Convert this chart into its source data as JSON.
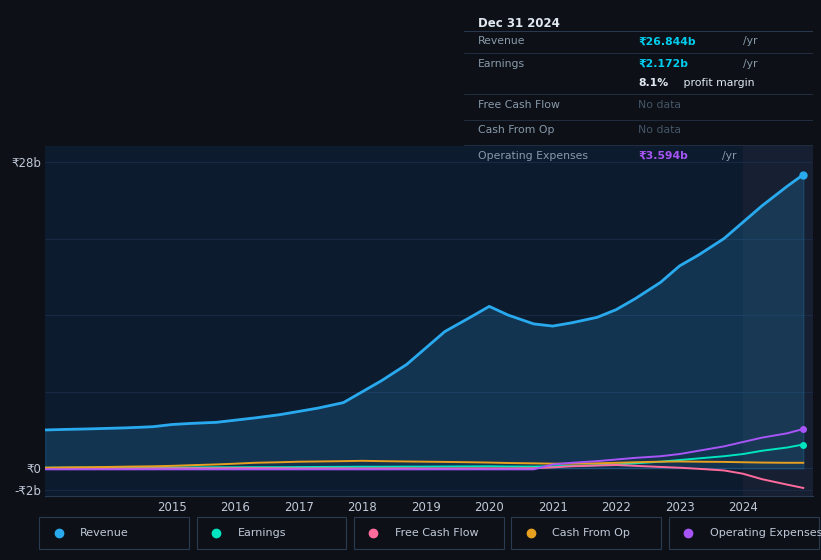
{
  "bg_color": "#0d1117",
  "plot_bg_color": "#0d1b2e",
  "grid_color": "#1e3050",
  "text_color": "#c0c8d8",
  "years": [
    2013.0,
    2013.3,
    2013.7,
    2014.0,
    2014.3,
    2014.7,
    2015.0,
    2015.3,
    2015.7,
    2016.0,
    2016.3,
    2016.7,
    2017.0,
    2017.3,
    2017.7,
    2018.0,
    2018.3,
    2018.7,
    2019.0,
    2019.3,
    2019.7,
    2020.0,
    2020.3,
    2020.7,
    2021.0,
    2021.3,
    2021.7,
    2022.0,
    2022.3,
    2022.7,
    2023.0,
    2023.3,
    2023.7,
    2024.0,
    2024.3,
    2024.7,
    2024.95
  ],
  "revenue": [
    3.5,
    3.55,
    3.6,
    3.65,
    3.7,
    3.8,
    4.0,
    4.1,
    4.2,
    4.4,
    4.6,
    4.9,
    5.2,
    5.5,
    6.0,
    7.0,
    8.0,
    9.5,
    11.0,
    12.5,
    13.8,
    14.8,
    14.0,
    13.2,
    13.0,
    13.3,
    13.8,
    14.5,
    15.5,
    17.0,
    18.5,
    19.5,
    21.0,
    22.5,
    24.0,
    25.8,
    26.844
  ],
  "earnings": [
    0.05,
    0.05,
    0.06,
    0.06,
    0.07,
    0.07,
    0.08,
    0.08,
    0.09,
    0.09,
    0.1,
    0.1,
    0.11,
    0.12,
    0.13,
    0.14,
    0.14,
    0.15,
    0.15,
    0.16,
    0.17,
    0.18,
    0.16,
    0.15,
    0.18,
    0.22,
    0.28,
    0.35,
    0.45,
    0.6,
    0.75,
    0.9,
    1.1,
    1.3,
    1.6,
    1.9,
    2.172
  ],
  "free_cash_flow": [
    -0.05,
    -0.04,
    -0.03,
    -0.02,
    -0.02,
    -0.01,
    -0.01,
    0.0,
    0.0,
    0.01,
    0.01,
    0.0,
    -0.01,
    -0.01,
    -0.01,
    -0.02,
    -0.01,
    -0.01,
    -0.02,
    -0.02,
    -0.01,
    -0.01,
    -0.01,
    0.0,
    0.08,
    0.18,
    0.25,
    0.3,
    0.22,
    0.12,
    0.05,
    -0.05,
    -0.2,
    -0.5,
    -1.0,
    -1.5,
    -1.8
  ],
  "cash_from_op": [
    0.05,
    0.08,
    0.1,
    0.12,
    0.15,
    0.18,
    0.22,
    0.28,
    0.35,
    0.42,
    0.5,
    0.55,
    0.6,
    0.62,
    0.65,
    0.68,
    0.65,
    0.62,
    0.6,
    0.58,
    0.55,
    0.52,
    0.48,
    0.45,
    0.42,
    0.42,
    0.45,
    0.5,
    0.55,
    0.6,
    0.62,
    0.6,
    0.58,
    0.55,
    0.52,
    0.5,
    0.5
  ],
  "operating_expenses": [
    -0.1,
    -0.1,
    -0.1,
    -0.1,
    -0.1,
    -0.1,
    -0.1,
    -0.1,
    -0.1,
    -0.1,
    -0.1,
    -0.1,
    -0.1,
    -0.1,
    -0.1,
    -0.1,
    -0.1,
    -0.1,
    -0.1,
    -0.1,
    -0.1,
    -0.1,
    -0.1,
    -0.1,
    0.35,
    0.5,
    0.65,
    0.8,
    0.95,
    1.1,
    1.3,
    1.6,
    2.0,
    2.4,
    2.8,
    3.2,
    3.594
  ],
  "revenue_color": "#29aaef",
  "earnings_color": "#00e5c0",
  "free_cash_flow_color": "#ff6b9d",
  "cash_from_op_color": "#e8a020",
  "operating_expenses_color": "#a855f7",
  "highlight_x_start": 2024.0,
  "highlight_shade_color": "#162032",
  "ylim": [
    -2.5,
    29.5
  ],
  "xlim": [
    2013.0,
    2025.1
  ],
  "ytick_vals": [
    -2,
    0,
    28
  ],
  "ytick_labels": [
    "-₹2b",
    "₹0",
    "₹28b"
  ],
  "xtick_years": [
    2015,
    2016,
    2017,
    2018,
    2019,
    2020,
    2021,
    2022,
    2023,
    2024
  ],
  "annotation_box": {
    "date": "Dec 31 2024",
    "revenue_label": "Revenue",
    "revenue_val": "₹26.844b",
    "revenue_unit": "/yr",
    "earnings_label": "Earnings",
    "earnings_val": "₹2.172b",
    "earnings_unit": "/yr",
    "profit_pct": "8.1%",
    "profit_text": " profit margin",
    "fcf_label": "Free Cash Flow",
    "fcf_val": "No data",
    "cfo_label": "Cash From Op",
    "cfo_val": "No data",
    "opex_label": "Operating Expenses",
    "opex_val": "₹3.594b",
    "opex_unit": "/yr"
  },
  "legend_items": [
    {
      "label": "Revenue",
      "color": "#29aaef"
    },
    {
      "label": "Earnings",
      "color": "#00e5c0"
    },
    {
      "label": "Free Cash Flow",
      "color": "#ff6b9d"
    },
    {
      "label": "Cash From Op",
      "color": "#e8a020"
    },
    {
      "label": "Operating Expenses",
      "color": "#a855f7"
    }
  ]
}
